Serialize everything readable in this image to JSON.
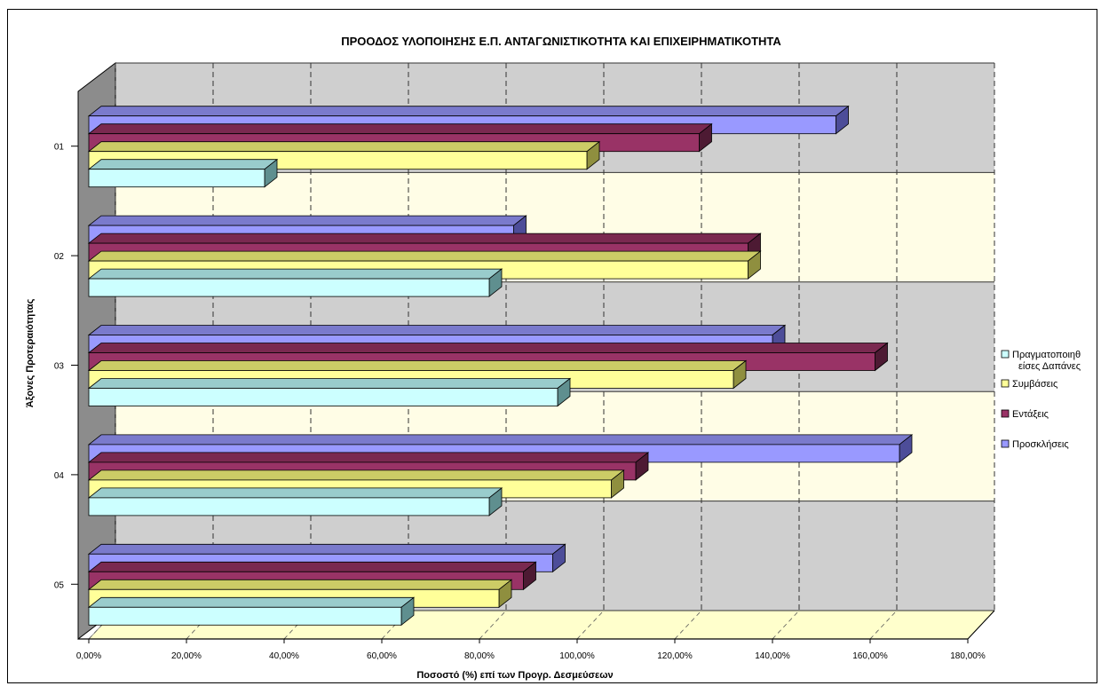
{
  "chart_data": {
    "type": "bar",
    "orientation": "horizontal",
    "title": "ΠΡΟΟΔΟΣ ΥΛΟΠΟΙΗΣΗΣ Ε.Π. ΑΝΤΑΓΩΝΙΣΤΙΚΟΤΗΤΑ ΚΑΙ ΕΠΙΧΕΙΡΗΜΑΤΙΚΟΤΗΤΑ",
    "xlabel": "Ποσοστό (%) επί των Προγρ. Δεσμεύσεων",
    "ylabel": "Άξονες Προτεραιότητας",
    "xlim": [
      0,
      180
    ],
    "x_ticks": [
      "0,00%",
      "20,00%",
      "40,00%",
      "60,00%",
      "80,00%",
      "100,00%",
      "120,00%",
      "140,00%",
      "160,00%",
      "180,00%"
    ],
    "categories": [
      "01",
      "02",
      "03",
      "04",
      "05"
    ],
    "series": [
      {
        "name": "Πραγματοποιηθείσες Δαπάνες",
        "color": "#ccffff",
        "top": "#99cccc",
        "side": "#5f8f8f",
        "values": [
          36,
          82,
          96,
          82,
          64
        ]
      },
      {
        "name": "Συμβάσεις",
        "color": "#ffff99",
        "top": "#cccc66",
        "side": "#8f8f3f",
        "values": [
          102,
          135,
          132,
          107,
          84
        ]
      },
      {
        "name": "Εντάξεις",
        "color": "#993366",
        "top": "#7a2950",
        "side": "#4d1a33",
        "values": [
          125,
          135,
          161,
          112,
          89
        ]
      },
      {
        "name": "Προσκλήσεις",
        "color": "#9999ff",
        "top": "#7a7acc",
        "side": "#4d4d99",
        "values": [
          153,
          87,
          140,
          166,
          95
        ]
      }
    ],
    "legend": {
      "position": "right",
      "entries": [
        "Πραγματοποιηθ",
        "είσες Δαπάνες",
        "Συμβάσεις",
        "Εντάξεις",
        "Προσκλήσεις"
      ]
    },
    "grid": true,
    "three_d": true
  }
}
